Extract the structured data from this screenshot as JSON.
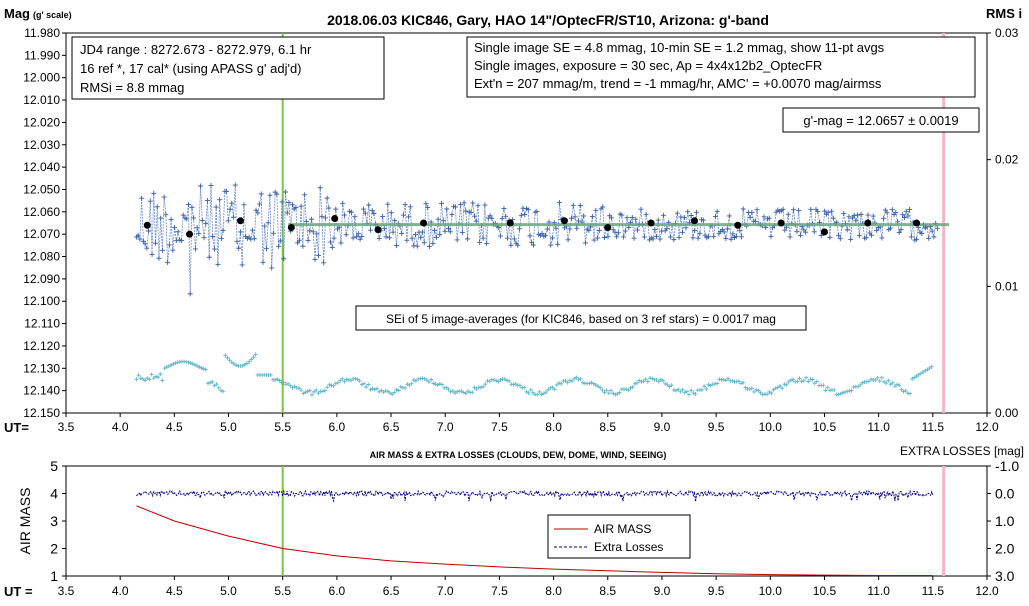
{
  "chart_data": [
    {
      "type": "scatter",
      "title": "2018.06.03  KIC846,  Gary, HAO 14\"/OptecFR/ST10,  Arizona:  g'-band",
      "ylabel_left": "Mag",
      "ylabel_left_note": "(g' scale)",
      "ylabel_right": "RMS i",
      "xlabel": "UT=",
      "xlim": [
        3.5,
        12.0
      ],
      "ylim_left": [
        12.15,
        11.98
      ],
      "ylim_right": [
        0.0,
        0.03
      ],
      "x_ticks": [
        "3.5",
        "4.0",
        "4.5",
        "5.0",
        "5.5",
        "6.0",
        "6.5",
        "7.0",
        "7.5",
        "8.0",
        "8.5",
        "9.0",
        "9.5",
        "10.0",
        "10.5",
        "11.0",
        "11.5",
        "12.0"
      ],
      "y_ticks_left": [
        "11.980",
        "11.990",
        "12.000",
        "12.010",
        "12.020",
        "12.030",
        "12.040",
        "12.050",
        "12.060",
        "12.070",
        "12.080",
        "12.090",
        "12.100",
        "12.110",
        "12.120",
        "12.130",
        "12.140",
        "12.150"
      ],
      "y_ticks_right": [
        "0.03",
        "0.02",
        "0.01",
        "0.00"
      ],
      "fit_mag": 12.0657,
      "vline_green_x": 5.5,
      "vline_pink_x": 11.6,
      "averages": {
        "x": [
          4.25,
          4.64,
          5.11,
          5.58,
          5.98,
          6.38,
          6.8,
          7.6,
          8.1,
          8.5,
          8.9,
          9.3,
          9.7,
          10.1,
          10.5,
          10.9,
          11.35
        ],
        "y": [
          12.066,
          12.07,
          12.064,
          12.067,
          12.063,
          12.068,
          12.065,
          12.065,
          12.064,
          12.067,
          12.065,
          12.064,
          12.066,
          12.065,
          12.069,
          12.065,
          12.065
        ]
      },
      "annotations": {
        "info_left": [
          "JD4 range : 8272.673 - 8272.979,  6.1  hr",
          "16 ref *, 17 cal* (using APASS g' adj'd)",
          "RMSi = 8.8 mmag"
        ],
        "info_right": [
          "Single image SE = 4.8 mmag, 10-min SE = 1.2 mmag, show  11-pt avgs",
          "Single images, exposure = 30 sec, Ap = 4x4x12b2_OptecFR",
          "Ext'n = 207 mmag/m, trend =  -1 mmag/hr, AMC' = +0.0070 mag/airmss"
        ],
        "gmag": "g'-mag = 12.0657 ± 0.0019",
        "sei": "SEi of 5 image-averages (for KIC846, based on 3 ref stars) = 0.0017  mag"
      }
    },
    {
      "type": "line",
      "title": "AIR MASS & EXTRA LOSSES (CLOUDS, DEW, DOME, WIND, SEEING)",
      "ylabel_left": "AIR MASS",
      "ylabel_right": "EXTRA LOSSES [mag]",
      "xlabel": "UT =",
      "xlim": [
        3.5,
        12.0
      ],
      "ylim_left": [
        1,
        5
      ],
      "ylim_right": [
        3.0,
        -1.0
      ],
      "x_ticks": [
        "3.5",
        "4.0",
        "4.5",
        "5.0",
        "5.5",
        "6.0",
        "6.5",
        "7.0",
        "7.5",
        "8.0",
        "8.5",
        "9.0",
        "9.5",
        "10.0",
        "10.5",
        "11.0",
        "11.5",
        "12.0"
      ],
      "y_ticks_left": [
        "1",
        "2",
        "3",
        "4",
        "5"
      ],
      "y_ticks_right": [
        "-1.0",
        "0.0",
        "1.0",
        "2.0",
        "3.0"
      ],
      "legend": [
        "AIR MASS",
        "Extra Losses"
      ],
      "airmass": {
        "x": [
          4.15,
          4.5,
          5.0,
          5.5,
          6.0,
          6.5,
          7.0,
          7.5,
          8.0,
          8.5,
          9.0,
          9.5,
          10.0,
          10.5,
          11.0,
          11.5
        ],
        "y": [
          3.55,
          3.0,
          2.45,
          2.0,
          1.73,
          1.55,
          1.43,
          1.33,
          1.25,
          1.19,
          1.13,
          1.08,
          1.05,
          1.03,
          1.02,
          1.02
        ]
      },
      "extra_losses_level": 0.0,
      "vline_green_x": 5.5,
      "vline_pink_x": 11.6
    }
  ]
}
